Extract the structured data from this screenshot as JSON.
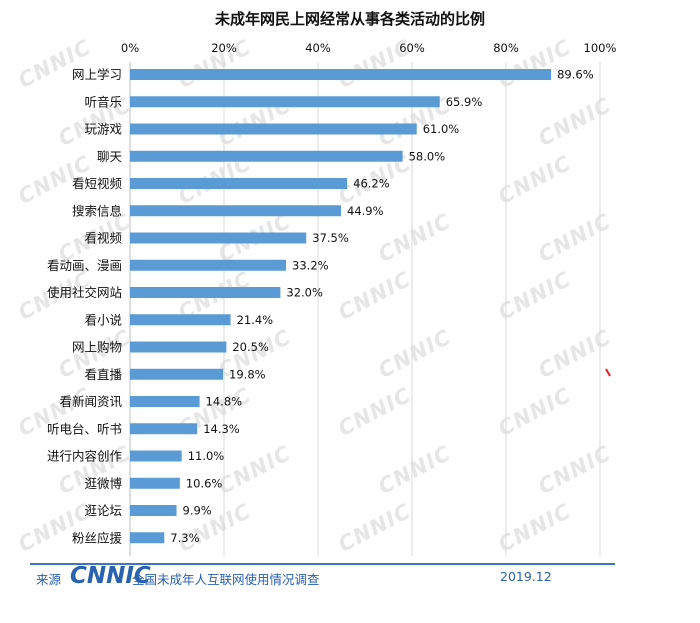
{
  "chart_data": {
    "type": "bar",
    "orientation": "horizontal",
    "title": "未成年网民上网经常从事各类活动的比例",
    "categories": [
      "网上学习",
      "听音乐",
      "玩游戏",
      "聊天",
      "看短视频",
      "搜索信息",
      "看视频",
      "看动画、漫画",
      "使用社交网站",
      "看小说",
      "网上购物",
      "看直播",
      "看新闻资讯",
      "听电台、听书",
      "进行内容创作",
      "逛微博",
      "逛论坛",
      "粉丝应援"
    ],
    "values": [
      89.6,
      65.9,
      61.0,
      58.0,
      46.2,
      44.9,
      37.5,
      33.2,
      32.0,
      21.4,
      20.5,
      19.8,
      14.8,
      14.3,
      11.0,
      10.6,
      9.9,
      7.3
    ],
    "value_labels": [
      "89.6%",
      "65.9%",
      "61.0%",
      "58.0%",
      "46.2%",
      "44.9%",
      "37.5%",
      "33.2%",
      "32.0%",
      "21.4%",
      "20.5%",
      "19.8%",
      "14.8%",
      "14.3%",
      "11.0%",
      "10.6%",
      "9.9%",
      "7.3%"
    ],
    "xlim": [
      0,
      100
    ],
    "xticks": [
      "0%",
      "20%",
      "40%",
      "60%",
      "80%",
      "100%"
    ],
    "x_axis_position": "top",
    "grid": true,
    "bar_color": "#5b9bd5",
    "watermark": "CNNIC"
  },
  "footer": {
    "source_label": "来源",
    "logo_text": "CNNIC",
    "survey_name": "全国未成年人互联网使用情况调查",
    "date": "2019.12",
    "accent_color": "#2a62b0"
  }
}
